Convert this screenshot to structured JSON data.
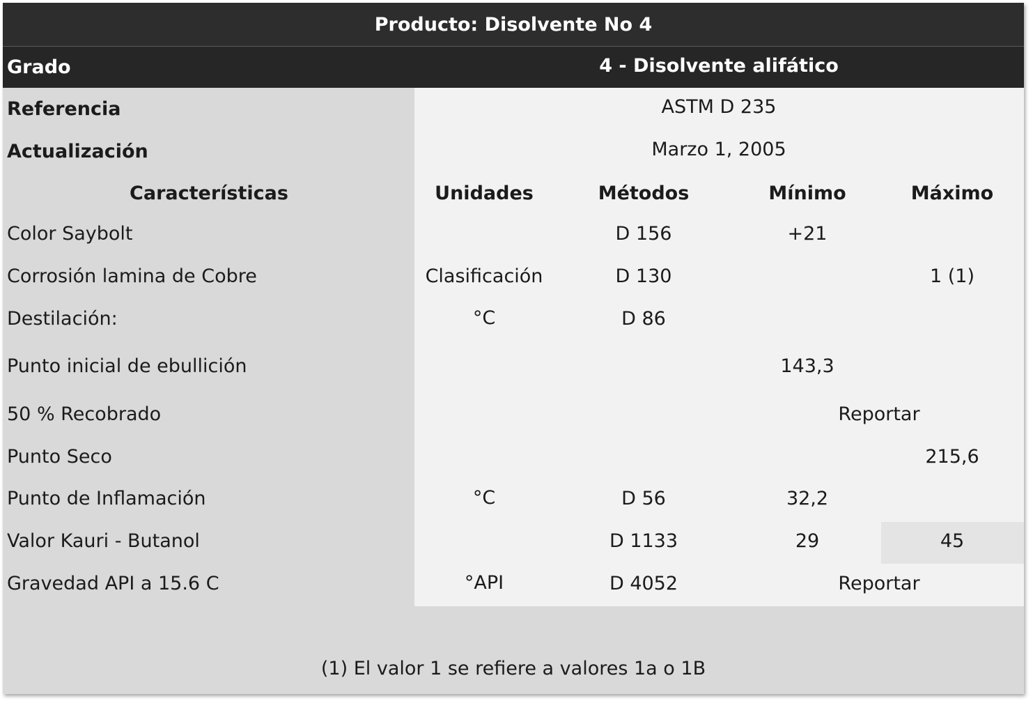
{
  "title": "Producto: Disolvente No 4",
  "grado": {
    "label": "Grado",
    "value": "4 - Disolvente alifático"
  },
  "referencia": {
    "label": "Referencia",
    "value": "ASTM D 235"
  },
  "actualizacion": {
    "label": "Actualización",
    "value": "Marzo 1, 2005"
  },
  "headers": {
    "caracteristicas": "Características",
    "unidades": "Unidades",
    "metodos": "Métodos",
    "minimo": "Mínimo",
    "maximo": "Máximo"
  },
  "rows": [
    {
      "name": "Color Saybolt",
      "unidades": "",
      "metodo": "D 156",
      "minimo": "+21",
      "maximo": ""
    },
    {
      "name": "Corrosión lamina de Cobre",
      "unidades": "Clasificación",
      "metodo": "D 130",
      "minimo": "",
      "maximo": "1 (1)"
    },
    {
      "name": "Destilación:",
      "unidades": "°C",
      "metodo": "D 86",
      "minimo": "",
      "maximo": ""
    },
    {
      "name": "Punto inicial de ebullición",
      "unidades": "",
      "metodo": "",
      "minimo": "143,3",
      "maximo": ""
    },
    {
      "name": "50 % Recobrado",
      "unidades": "",
      "metodo": "",
      "span": "Reportar"
    },
    {
      "name": "Punto Seco",
      "unidades": "",
      "metodo": "",
      "minimo": "",
      "maximo": "215,6"
    },
    {
      "name": "Punto de Inflamación",
      "unidades": "°C",
      "metodo": "D 56",
      "minimo": "32,2",
      "maximo": ""
    },
    {
      "name": "Valor Kauri - Butanol",
      "unidades": "",
      "metodo": "D 1133",
      "minimo": "29",
      "maximo": "45"
    },
    {
      "name": "Gravedad API a 15.6 C",
      "unidades": "°API",
      "metodo": "D 4052",
      "span": "Reportar"
    }
  ],
  "footnote": "(1) El valor 1 se refiere a valores 1a o 1B",
  "colors": {
    "title_bg": "#2d2d2d",
    "grado_bg": "#262626",
    "sheet_bg": "#d9d9d9",
    "panel_bg": "#f2f2f2"
  }
}
